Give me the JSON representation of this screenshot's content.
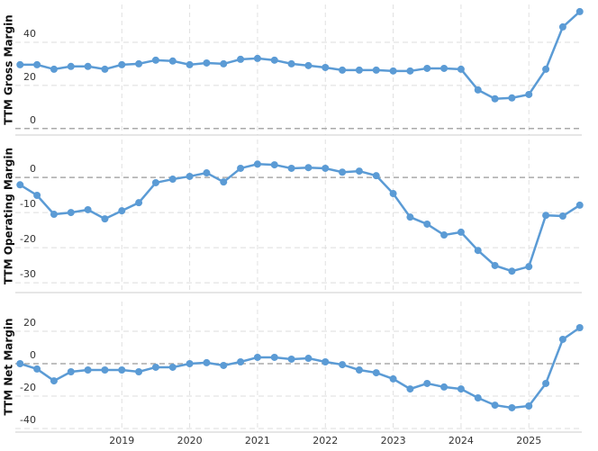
{
  "chart_data": [
    {
      "type": "line",
      "ylabel": "TTM Gross Margin",
      "x": [
        2017.5,
        2017.75,
        2018,
        2018.25,
        2018.5,
        2018.75,
        2019,
        2019.25,
        2019.5,
        2019.75,
        2020,
        2020.25,
        2020.5,
        2020.75,
        2021,
        2021.25,
        2021.5,
        2021.75,
        2022,
        2022.25,
        2022.5,
        2022.75,
        2023,
        2023.25,
        2023.5,
        2023.75,
        2024,
        2024.25,
        2024.5,
        2024.75,
        2025,
        2025.25,
        2025.5,
        2025.75
      ],
      "series": [
        {
          "name": "TTM Gross Margin",
          "color": "#5b9bd5",
          "values": [
            29.6,
            29.6,
            27.5,
            28.8,
            28.8,
            27.5,
            29.6,
            30,
            31.7,
            31.3,
            29.6,
            30.4,
            30,
            32.1,
            32.5,
            31.7,
            30,
            29.2,
            28.3,
            27.1,
            27.1,
            27.1,
            26.7,
            26.7,
            27.9,
            27.9,
            27.5,
            17.9,
            13.8,
            14.2,
            15.8,
            27.5,
            47.1,
            54.2
          ]
        }
      ],
      "xlim": [
        2017.43,
        2025.78
      ],
      "ylim": [
        -3,
        57.5
      ],
      "yticks": [
        0,
        20,
        40
      ],
      "grid": true
    },
    {
      "type": "line",
      "ylabel": "TTM Operating Margin",
      "x": [
        2017.5,
        2017.75,
        2018,
        2018.25,
        2018.5,
        2018.75,
        2019,
        2019.25,
        2019.5,
        2019.75,
        2020,
        2020.25,
        2020.5,
        2020.75,
        2021,
        2021.25,
        2021.5,
        2021.75,
        2022,
        2022.25,
        2022.5,
        2022.75,
        2023,
        2023.25,
        2023.5,
        2023.75,
        2024,
        2024.25,
        2024.5,
        2024.75,
        2025,
        2025.25,
        2025.5,
        2025.75
      ],
      "series": [
        {
          "name": "TTM Operating Margin",
          "color": "#5b9bd5",
          "values": [
            -2.1,
            -5.1,
            -10.5,
            -10,
            -9.2,
            -11.8,
            -9.5,
            -7.2,
            -1.5,
            -0.5,
            0.3,
            1.3,
            -1.3,
            2.6,
            3.8,
            3.6,
            2.6,
            2.8,
            2.6,
            1.5,
            1.8,
            0.5,
            -4.6,
            -11.3,
            -13.3,
            -16.4,
            -15.6,
            -20.8,
            -25.1,
            -26.7,
            -25.4,
            -10.8,
            -11,
            -7.9
          ]
        }
      ],
      "xlim": [
        2017.43,
        2025.78
      ],
      "ylim": [
        -32.8,
        10.8
      ],
      "yticks": [
        -30,
        -20,
        -10,
        0
      ],
      "grid": true
    },
    {
      "type": "line",
      "ylabel": "TTM Net Margin",
      "x": [
        2017.5,
        2017.75,
        2018,
        2018.25,
        2018.5,
        2018.75,
        2019,
        2019.25,
        2019.5,
        2019.75,
        2020,
        2020.25,
        2020.5,
        2020.75,
        2021,
        2021.25,
        2021.5,
        2021.75,
        2022,
        2022.25,
        2022.5,
        2022.75,
        2023,
        2023.25,
        2023.5,
        2023.75,
        2024,
        2024.25,
        2024.5,
        2024.75,
        2025,
        2025.25,
        2025.5,
        2025.75
      ],
      "series": [
        {
          "name": "TTM Net Margin",
          "color": "#5b9bd5",
          "values": [
            0,
            -3.3,
            -10.6,
            -5,
            -3.9,
            -3.9,
            -3.9,
            -5,
            -2.2,
            -2.2,
            0,
            0.6,
            -1.1,
            1.1,
            3.9,
            3.9,
            2.8,
            3.3,
            1.1,
            -0.6,
            -3.9,
            -5.6,
            -9.4,
            -15.6,
            -12.2,
            -14.4,
            -15.6,
            -21.1,
            -25.6,
            -27.2,
            -26.1,
            -12.2,
            15,
            22.2
          ]
        }
      ],
      "xlim": [
        2017.43,
        2025.78
      ],
      "ylim": [
        -42.2,
        38.3
      ],
      "yticks": [
        -40,
        -20,
        0,
        20
      ],
      "xticks": [
        2019,
        2020,
        2021,
        2022,
        2023,
        2024,
        2025
      ],
      "grid": true
    }
  ]
}
